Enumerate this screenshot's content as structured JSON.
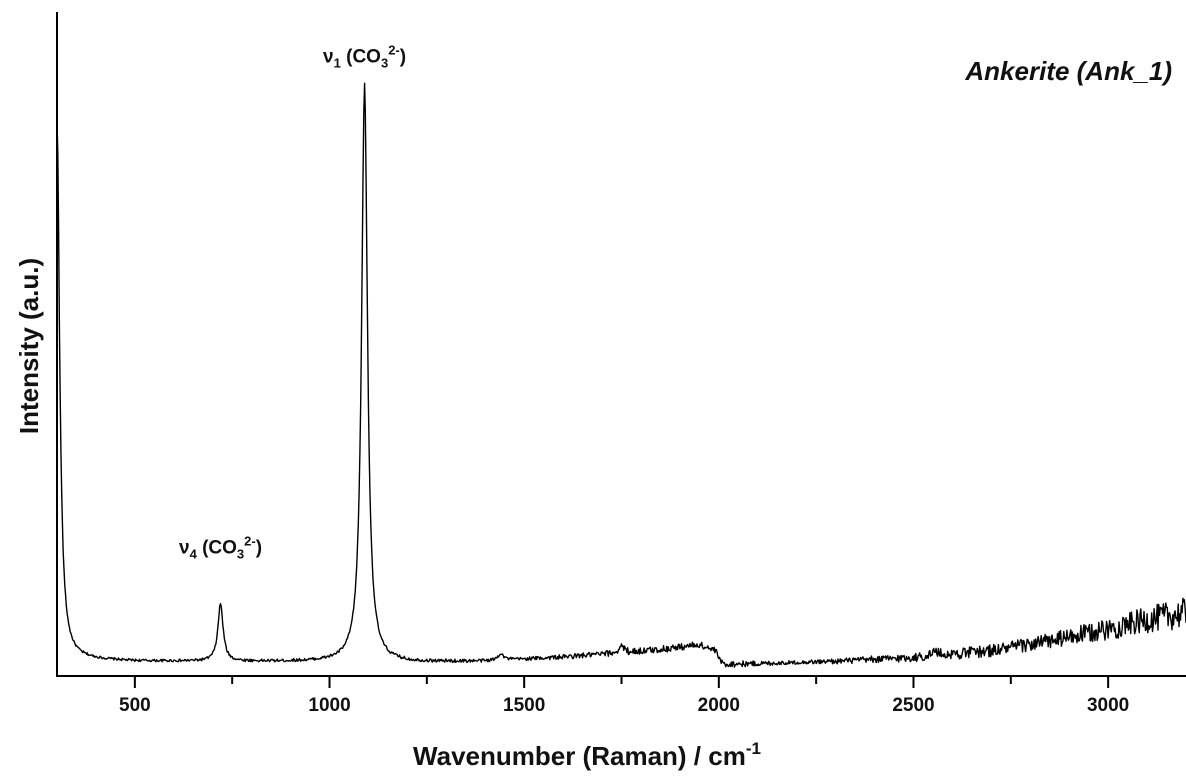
{
  "chart_data": {
    "type": "line",
    "title": "Ankerite (Ank_1)",
    "xlabel": "Wavenumber (Raman) / cm",
    "xlabel_superscript": "-1",
    "ylabel": "Intensity (a.u.)",
    "xlim": [
      300,
      3200
    ],
    "ylim": [
      0,
      1
    ],
    "x_ticks": [
      500,
      1000,
      1500,
      2000,
      2500,
      3000
    ],
    "x_minor_ticks": [
      750,
      1250,
      1750,
      2250,
      2750
    ],
    "grid": false,
    "legend": "none",
    "line_color": "#000000",
    "annotations": [
      {
        "id": "v1",
        "base": "ν",
        "sub": "1",
        "open": " (CO",
        "sub2": "3",
        "sup": "2-",
        "close": ")",
        "x": 1090,
        "y": 0.97
      },
      {
        "id": "v4",
        "base": "ν",
        "sub": "4",
        "open": " (CO",
        "sub2": "3",
        "sup": "2-",
        "close": ")",
        "x": 720,
        "y": 0.14
      }
    ],
    "series": [
      {
        "baseline_points": [
          [
            300,
            0.012
          ],
          [
            500,
            0.008
          ],
          [
            1000,
            0.007
          ],
          [
            1200,
            0.006
          ],
          [
            1400,
            0.008
          ],
          [
            1600,
            0.015
          ],
          [
            1750,
            0.022
          ],
          [
            1850,
            0.028
          ],
          [
            1950,
            0.036
          ],
          [
            1990,
            0.026
          ],
          [
            2010,
            0.003
          ],
          [
            2100,
            0.004
          ],
          [
            2300,
            0.008
          ],
          [
            2500,
            0.014
          ],
          [
            2700,
            0.026
          ],
          [
            2850,
            0.042
          ],
          [
            3000,
            0.062
          ],
          [
            3100,
            0.078
          ],
          [
            3200,
            0.09
          ]
        ],
        "peaks": [
          {
            "center": 300,
            "height": 0.91,
            "width": 8
          },
          {
            "center": 720,
            "height": 0.097,
            "width": 8
          },
          {
            "center": 1090,
            "height": 0.978,
            "width": 9
          },
          {
            "center": 1440,
            "height": 0.012,
            "width": 8
          },
          {
            "center": 1750,
            "height": 0.012,
            "width": 8
          },
          {
            "center": 2555,
            "height": 0.008,
            "width": 10
          }
        ],
        "noise": [
          [
            300,
            0.002
          ],
          [
            1500,
            0.003
          ],
          [
            1800,
            0.006
          ],
          [
            2000,
            0.006
          ],
          [
            2200,
            0.003
          ],
          [
            2800,
            0.012
          ],
          [
            3000,
            0.018
          ],
          [
            3200,
            0.026
          ]
        ]
      }
    ]
  }
}
